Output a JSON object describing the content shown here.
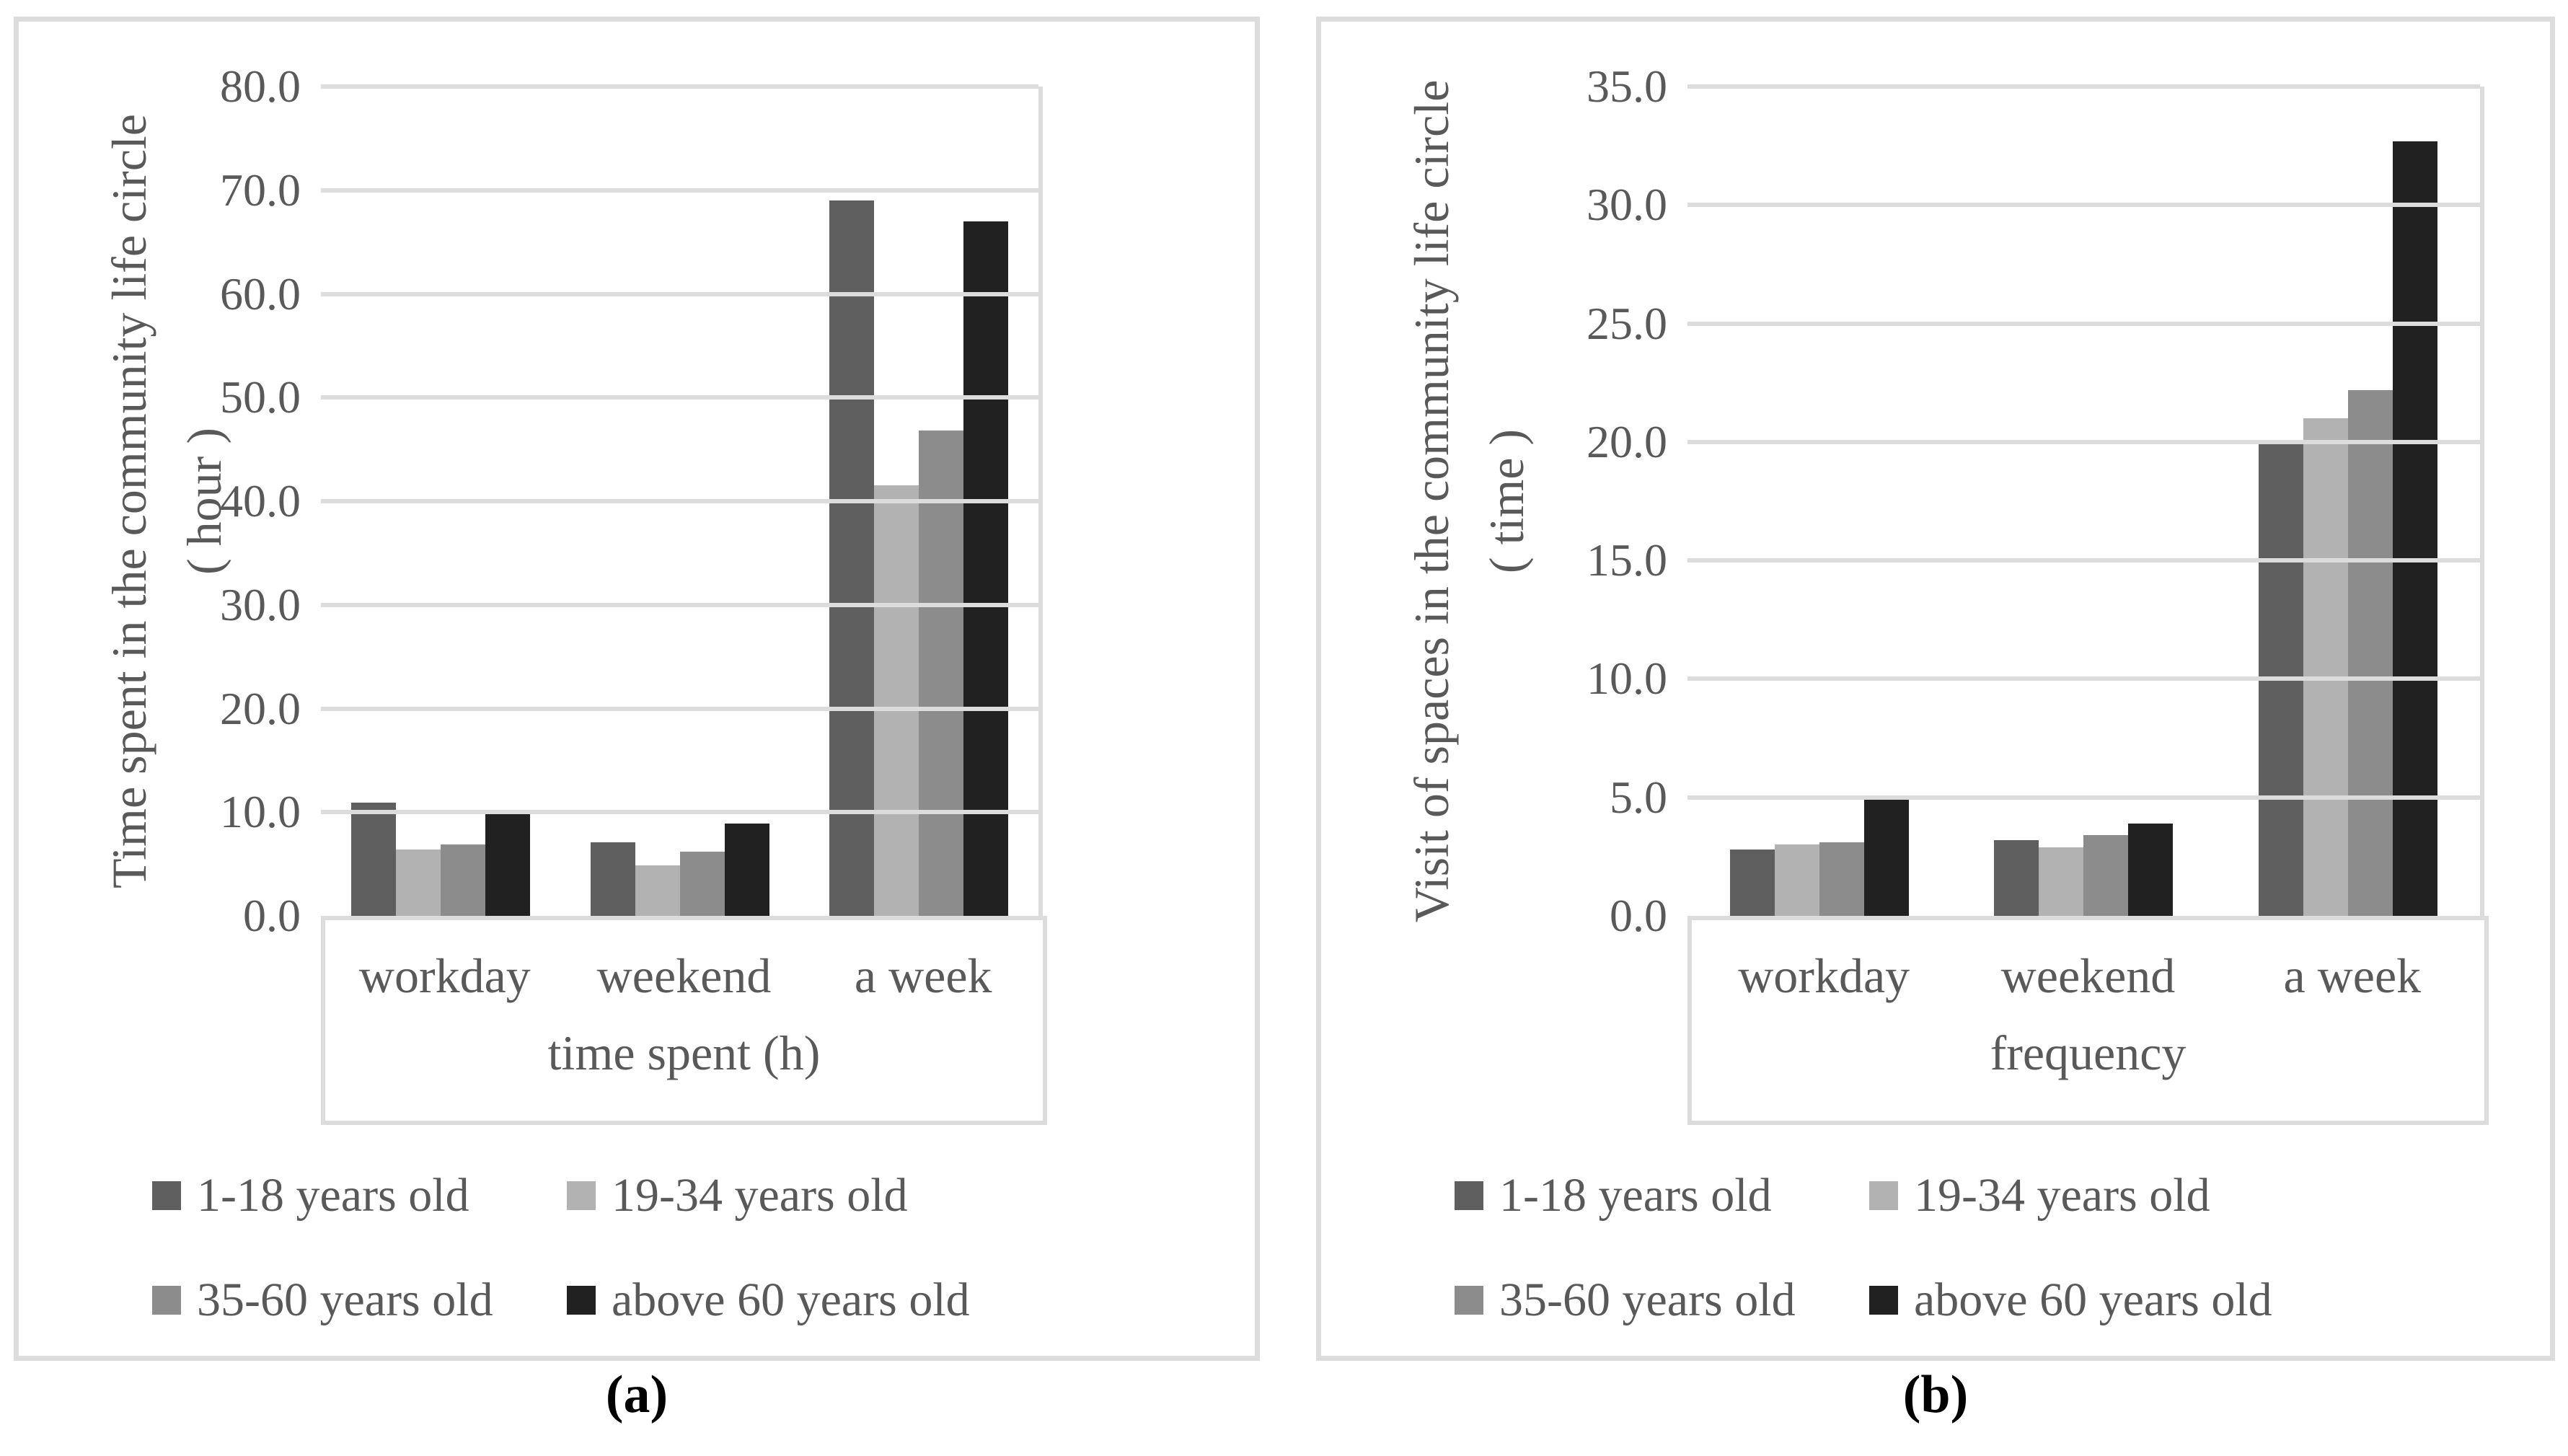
{
  "colors": {
    "grid": "#dcdcdc",
    "panel_border": "#dcdcdc",
    "axis_text": "#595959",
    "caption_text": "#000000",
    "background": "#ffffff"
  },
  "chart_data": [
    {
      "type": "bar",
      "panel": "a",
      "caption": "(a)",
      "ylabel_line1": "Time spent in the community life circle",
      "ylabel_line2": "( hour )",
      "xlabel": "time spent (h)",
      "categories": [
        "workday",
        "weekend",
        "a week"
      ],
      "series": [
        {
          "name": "1-18 years old",
          "color": "#5f5f5f",
          "values": [
            10.9,
            7.1,
            69.0
          ]
        },
        {
          "name": "19-34 years old",
          "color": "#b2b2b2",
          "values": [
            6.4,
            4.9,
            41.5
          ]
        },
        {
          "name": "35-60 years old",
          "color": "#8c8c8c",
          "values": [
            6.9,
            6.2,
            46.8
          ]
        },
        {
          "name": "above 60 years old",
          "color": "#212121",
          "values": [
            9.8,
            8.9,
            67.0
          ]
        }
      ],
      "ylim": [
        0,
        80
      ],
      "ytick_step": 10,
      "ytick_labels": [
        "80.0",
        "70.0",
        "60.0",
        "50.0",
        "40.0",
        "30.0",
        "20.0",
        "10.0",
        "0.0"
      ],
      "grid": true,
      "legend_position": "bottom"
    },
    {
      "type": "bar",
      "panel": "b",
      "caption": "(b)",
      "ylabel_line1": "Visit of spaces in the community life circle",
      "ylabel_line2": "( time )",
      "xlabel": "frequency",
      "categories": [
        "workday",
        "weekend",
        "a week"
      ],
      "series": [
        {
          "name": "1-18 years old",
          "color": "#5f5f5f",
          "values": [
            2.8,
            3.2,
            20.1
          ]
        },
        {
          "name": "19-34 years old",
          "color": "#b2b2b2",
          "values": [
            3.0,
            2.9,
            21.0
          ]
        },
        {
          "name": "35-60 years old",
          "color": "#8c8c8c",
          "values": [
            3.1,
            3.4,
            22.2
          ]
        },
        {
          "name": "above 60 years old",
          "color": "#212121",
          "values": [
            4.9,
            3.9,
            32.7
          ]
        }
      ],
      "ylim": [
        0,
        35
      ],
      "ytick_step": 5,
      "ytick_labels": [
        "35.0",
        "30.0",
        "25.0",
        "20.0",
        "15.0",
        "10.0",
        "5.0",
        "0.0"
      ],
      "grid": true,
      "legend_position": "bottom"
    }
  ]
}
